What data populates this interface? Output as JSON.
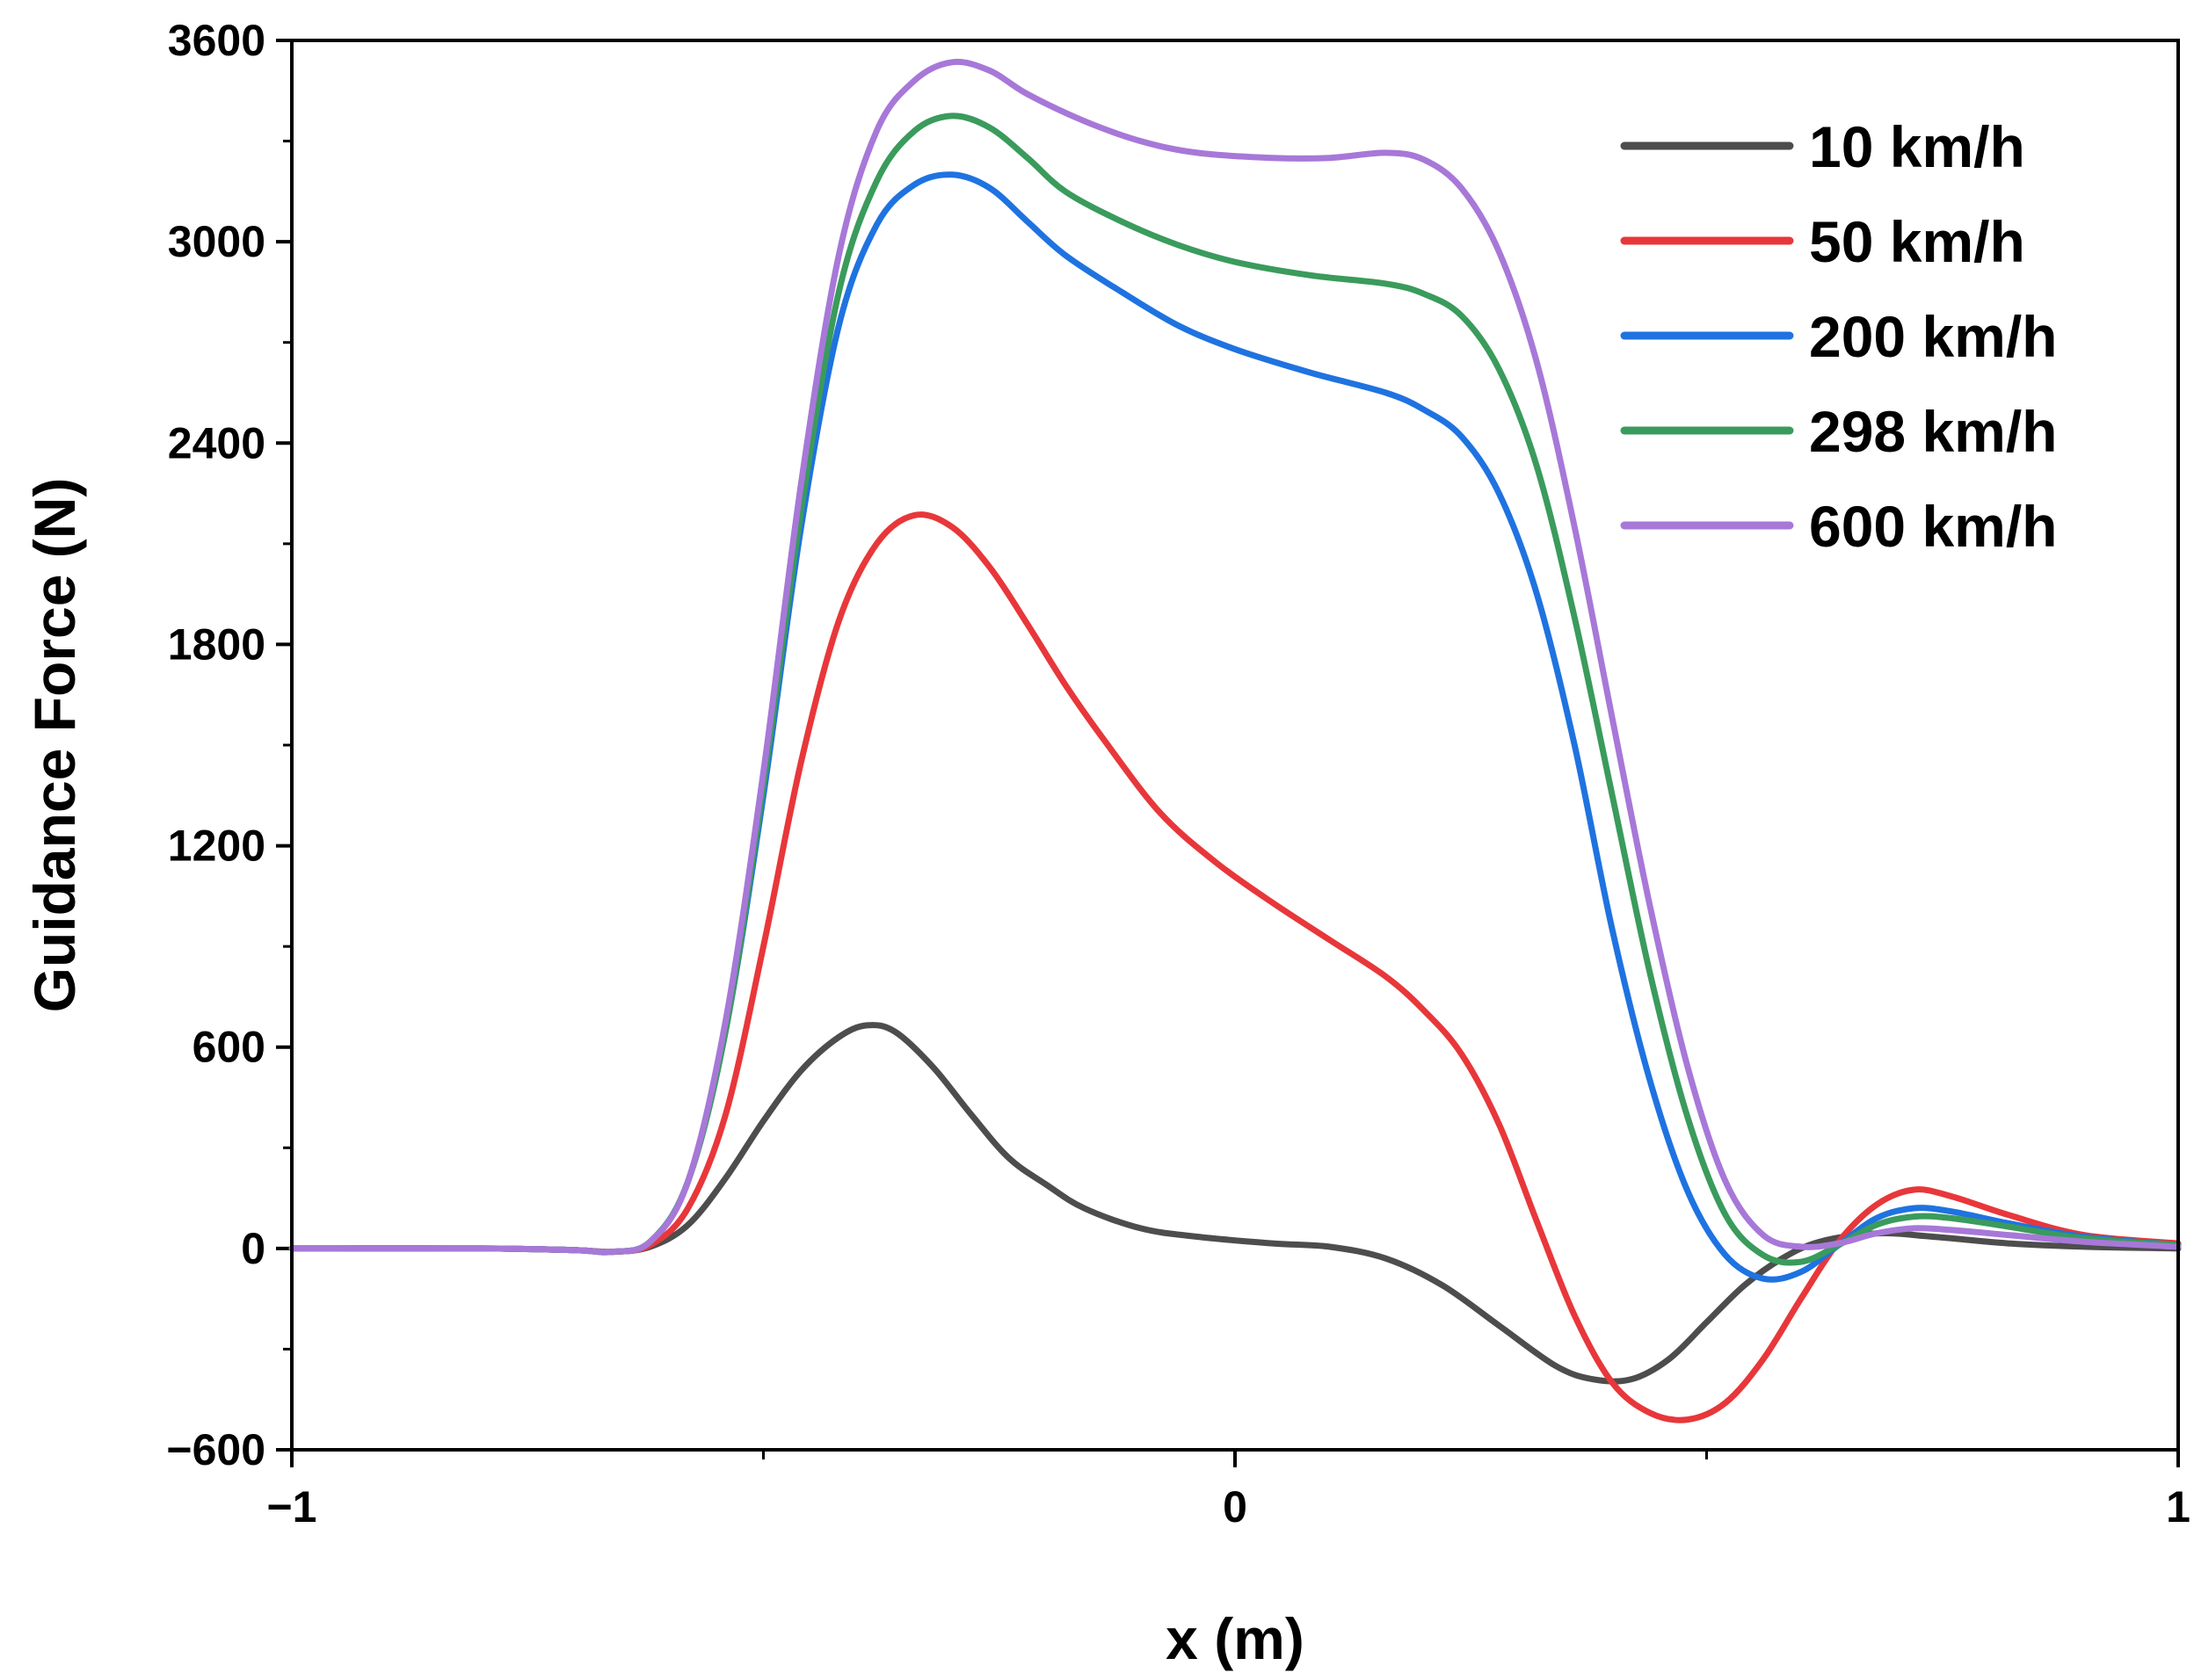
{
  "chart_data": {
    "type": "line",
    "title": "",
    "xlabel": "x (m)",
    "ylabel": "Guidance Force (N)",
    "xlim": [
      -1,
      1
    ],
    "ylim": [
      -600,
      3600
    ],
    "x_ticks": [
      -1,
      0,
      1
    ],
    "x_tick_labels": [
      "−1",
      "0",
      "1"
    ],
    "y_ticks": [
      -600,
      0,
      600,
      1200,
      1800,
      2400,
      3000,
      3600
    ],
    "y_tick_labels": [
      "−600",
      "0",
      "600",
      "1200",
      "1800",
      "2400",
      "3000",
      "3600"
    ],
    "grid": false,
    "legend_position": "top-right",
    "series": [
      {
        "name": "10 km/h",
        "color": "#4d4d4d",
        "points": [
          [
            -1,
            0
          ],
          [
            -0.8,
            0
          ],
          [
            -0.7,
            -5
          ],
          [
            -0.66,
            -10
          ],
          [
            -0.62,
            5
          ],
          [
            -0.58,
            70
          ],
          [
            -0.54,
            210
          ],
          [
            -0.5,
            380
          ],
          [
            -0.46,
            530
          ],
          [
            -0.42,
            630
          ],
          [
            -0.39,
            665
          ],
          [
            -0.36,
            645
          ],
          [
            -0.32,
            540
          ],
          [
            -0.28,
            400
          ],
          [
            -0.24,
            270
          ],
          [
            -0.2,
            190
          ],
          [
            -0.16,
            120
          ],
          [
            -0.1,
            60
          ],
          [
            -0.04,
            35
          ],
          [
            0.04,
            15
          ],
          [
            0.1,
            5
          ],
          [
            0.16,
            -30
          ],
          [
            0.22,
            -110
          ],
          [
            0.28,
            -230
          ],
          [
            0.34,
            -350
          ],
          [
            0.38,
            -390
          ],
          [
            0.42,
            -390
          ],
          [
            0.46,
            -330
          ],
          [
            0.5,
            -220
          ],
          [
            0.54,
            -110
          ],
          [
            0.58,
            -30
          ],
          [
            0.62,
            20
          ],
          [
            0.68,
            45
          ],
          [
            0.74,
            35
          ],
          [
            0.82,
            15
          ],
          [
            0.9,
            5
          ],
          [
            1,
            0
          ]
        ]
      },
      {
        "name": "50 km/h",
        "color": "#e8373a",
        "points": [
          [
            -1,
            0
          ],
          [
            -0.8,
            0
          ],
          [
            -0.7,
            -5
          ],
          [
            -0.66,
            -10
          ],
          [
            -0.62,
            10
          ],
          [
            -0.58,
            120
          ],
          [
            -0.54,
            400
          ],
          [
            -0.5,
            900
          ],
          [
            -0.46,
            1450
          ],
          [
            -0.42,
            1870
          ],
          [
            -0.38,
            2100
          ],
          [
            -0.34,
            2185
          ],
          [
            -0.3,
            2150
          ],
          [
            -0.26,
            2030
          ],
          [
            -0.22,
            1860
          ],
          [
            -0.18,
            1680
          ],
          [
            -0.14,
            1520
          ],
          [
            -0.08,
            1300
          ],
          [
            -0.02,
            1150
          ],
          [
            0.04,
            1030
          ],
          [
            0.1,
            920
          ],
          [
            0.16,
            810
          ],
          [
            0.2,
            710
          ],
          [
            0.24,
            580
          ],
          [
            0.28,
            370
          ],
          [
            0.32,
            80
          ],
          [
            0.36,
            -200
          ],
          [
            0.4,
            -400
          ],
          [
            0.44,
            -490
          ],
          [
            0.48,
            -510
          ],
          [
            0.52,
            -460
          ],
          [
            0.56,
            -330
          ],
          [
            0.6,
            -150
          ],
          [
            0.64,
            20
          ],
          [
            0.68,
            130
          ],
          [
            0.72,
            175
          ],
          [
            0.76,
            155
          ],
          [
            0.82,
            100
          ],
          [
            0.9,
            40
          ],
          [
            1,
            15
          ]
        ]
      },
      {
        "name": "200 km/h",
        "color": "#1f73e0",
        "points": [
          [
            -1,
            0
          ],
          [
            -0.8,
            0
          ],
          [
            -0.7,
            -5
          ],
          [
            -0.66,
            -10
          ],
          [
            -0.62,
            20
          ],
          [
            -0.58,
            200
          ],
          [
            -0.54,
            650
          ],
          [
            -0.5,
            1350
          ],
          [
            -0.46,
            2150
          ],
          [
            -0.42,
            2750
          ],
          [
            -0.38,
            3050
          ],
          [
            -0.34,
            3170
          ],
          [
            -0.3,
            3200
          ],
          [
            -0.26,
            3160
          ],
          [
            -0.22,
            3060
          ],
          [
            -0.18,
            2960
          ],
          [
            -0.12,
            2850
          ],
          [
            -0.06,
            2750
          ],
          [
            0,
            2680
          ],
          [
            0.08,
            2610
          ],
          [
            0.16,
            2550
          ],
          [
            0.2,
            2500
          ],
          [
            0.24,
            2420
          ],
          [
            0.28,
            2250
          ],
          [
            0.32,
            1950
          ],
          [
            0.36,
            1500
          ],
          [
            0.4,
            950
          ],
          [
            0.44,
            500
          ],
          [
            0.48,
            170
          ],
          [
            0.52,
            -20
          ],
          [
            0.56,
            -90
          ],
          [
            0.6,
            -70
          ],
          [
            0.64,
            10
          ],
          [
            0.68,
            90
          ],
          [
            0.72,
            120
          ],
          [
            0.76,
            110
          ],
          [
            0.82,
            75
          ],
          [
            0.9,
            35
          ],
          [
            1,
            10
          ]
        ]
      },
      {
        "name": "298 km/h",
        "color": "#3a9b5c",
        "points": [
          [
            -1,
            0
          ],
          [
            -0.8,
            0
          ],
          [
            -0.7,
            -5
          ],
          [
            -0.66,
            -10
          ],
          [
            -0.62,
            20
          ],
          [
            -0.58,
            200
          ],
          [
            -0.54,
            650
          ],
          [
            -0.5,
            1380
          ],
          [
            -0.46,
            2200
          ],
          [
            -0.42,
            2850
          ],
          [
            -0.38,
            3180
          ],
          [
            -0.34,
            3330
          ],
          [
            -0.3,
            3375
          ],
          [
            -0.26,
            3340
          ],
          [
            -0.22,
            3250
          ],
          [
            -0.18,
            3150
          ],
          [
            -0.12,
            3060
          ],
          [
            -0.06,
            2990
          ],
          [
            0,
            2940
          ],
          [
            0.08,
            2900
          ],
          [
            0.16,
            2875
          ],
          [
            0.2,
            2845
          ],
          [
            0.24,
            2780
          ],
          [
            0.28,
            2620
          ],
          [
            0.32,
            2330
          ],
          [
            0.36,
            1880
          ],
          [
            0.4,
            1350
          ],
          [
            0.44,
            820
          ],
          [
            0.48,
            390
          ],
          [
            0.52,
            100
          ],
          [
            0.56,
            -20
          ],
          [
            0.6,
            -40
          ],
          [
            0.64,
            10
          ],
          [
            0.68,
            70
          ],
          [
            0.72,
            95
          ],
          [
            0.76,
            90
          ],
          [
            0.82,
            65
          ],
          [
            0.9,
            30
          ],
          [
            1,
            10
          ]
        ]
      },
      {
        "name": "600 km/h",
        "color": "#a778d8",
        "points": [
          [
            -1,
            0
          ],
          [
            -0.8,
            0
          ],
          [
            -0.7,
            -5
          ],
          [
            -0.66,
            -10
          ],
          [
            -0.62,
            20
          ],
          [
            -0.58,
            200
          ],
          [
            -0.54,
            680
          ],
          [
            -0.5,
            1420
          ],
          [
            -0.46,
            2280
          ],
          [
            -0.42,
            2960
          ],
          [
            -0.38,
            3330
          ],
          [
            -0.34,
            3480
          ],
          [
            -0.3,
            3535
          ],
          [
            -0.26,
            3510
          ],
          [
            -0.22,
            3440
          ],
          [
            -0.16,
            3360
          ],
          [
            -0.1,
            3300
          ],
          [
            -0.04,
            3265
          ],
          [
            0.04,
            3250
          ],
          [
            0.1,
            3250
          ],
          [
            0.16,
            3265
          ],
          [
            0.2,
            3245
          ],
          [
            0.24,
            3160
          ],
          [
            0.28,
            2970
          ],
          [
            0.32,
            2640
          ],
          [
            0.36,
            2150
          ],
          [
            0.4,
            1580
          ],
          [
            0.44,
            1020
          ],
          [
            0.48,
            540
          ],
          [
            0.52,
            200
          ],
          [
            0.56,
            40
          ],
          [
            0.6,
            5
          ],
          [
            0.64,
            15
          ],
          [
            0.68,
            45
          ],
          [
            0.72,
            60
          ],
          [
            0.76,
            55
          ],
          [
            0.82,
            40
          ],
          [
            0.9,
            20
          ],
          [
            1,
            5
          ]
        ]
      }
    ]
  }
}
